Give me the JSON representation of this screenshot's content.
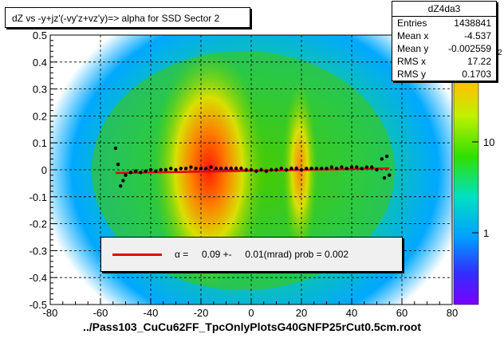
{
  "chart_data": {
    "type": "heatmap",
    "title": "dZ vs -y+jz'(-vy'z+vz'y)=> alpha for SSD Sector 2",
    "xlabel": "../Pass103_CuCu62FF_TpcOnlyPlotsG40GNFP25rCut0.5cm.root",
    "ylabel": "",
    "xlim": [
      -80,
      80
    ],
    "ylim": [
      -0.5,
      0.5
    ],
    "x_ticks": [
      -80,
      -60,
      -40,
      -20,
      0,
      20,
      40,
      60,
      80
    ],
    "y_ticks": [
      -0.5,
      -0.4,
      -0.3,
      -0.2,
      -0.1,
      0,
      0.1,
      0.2,
      0.3,
      0.4,
      0.5
    ],
    "x_tick_labels": [
      "-80",
      "-60",
      "-40",
      "-20",
      "0",
      "20",
      "40",
      "60",
      "80"
    ],
    "y_tick_labels": [
      "-0.5",
      "-0.4",
      "-0.3",
      "-0.2",
      "-0.1",
      "0",
      "0.1",
      "0.2",
      "0.3",
      "0.4",
      "0.5"
    ],
    "grid": true,
    "colorbar": {
      "scale": "log",
      "labels": [
        "1",
        "10"
      ],
      "exponent_label": "2"
    },
    "profile_points": [
      {
        "x": -54,
        "y": 0.08
      },
      {
        "x": -53,
        "y": 0.02
      },
      {
        "x": -52,
        "y": -0.06
      },
      {
        "x": -51,
        "y": -0.04
      },
      {
        "x": -50,
        "y": -0.02
      },
      {
        "x": -48,
        "y": -0.01
      },
      {
        "x": -46,
        "y": -0.005
      },
      {
        "x": -44,
        "y": -0.01
      },
      {
        "x": -42,
        "y": -0.005
      },
      {
        "x": -40,
        "y": 0.0
      },
      {
        "x": -38,
        "y": -0.005
      },
      {
        "x": -36,
        "y": 0.0
      },
      {
        "x": -34,
        "y": 0.0
      },
      {
        "x": -32,
        "y": 0.005
      },
      {
        "x": -30,
        "y": 0.0
      },
      {
        "x": -28,
        "y": 0.005
      },
      {
        "x": -26,
        "y": 0.005
      },
      {
        "x": -24,
        "y": 0.01
      },
      {
        "x": -22,
        "y": 0.005
      },
      {
        "x": -20,
        "y": 0.005
      },
      {
        "x": -18,
        "y": 0.005
      },
      {
        "x": -16,
        "y": 0.01
      },
      {
        "x": -14,
        "y": 0.005
      },
      {
        "x": -12,
        "y": 0.005
      },
      {
        "x": -10,
        "y": 0.005
      },
      {
        "x": -8,
        "y": 0.005
      },
      {
        "x": -6,
        "y": 0.005
      },
      {
        "x": -4,
        "y": 0.005
      },
      {
        "x": -2,
        "y": 0.0
      },
      {
        "x": 0,
        "y": 0.0
      },
      {
        "x": 2,
        "y": -0.005
      },
      {
        "x": 4,
        "y": 0.0
      },
      {
        "x": 6,
        "y": -0.005
      },
      {
        "x": 8,
        "y": 0.0
      },
      {
        "x": 10,
        "y": 0.0
      },
      {
        "x": 12,
        "y": 0.005
      },
      {
        "x": 14,
        "y": 0.0
      },
      {
        "x": 16,
        "y": 0.005
      },
      {
        "x": 18,
        "y": 0.005
      },
      {
        "x": 20,
        "y": 0.0
      },
      {
        "x": 22,
        "y": 0.005
      },
      {
        "x": 24,
        "y": 0.005
      },
      {
        "x": 26,
        "y": 0.005
      },
      {
        "x": 28,
        "y": 0.005
      },
      {
        "x": 30,
        "y": 0.005
      },
      {
        "x": 32,
        "y": 0.01
      },
      {
        "x": 34,
        "y": 0.005
      },
      {
        "x": 36,
        "y": 0.01
      },
      {
        "x": 38,
        "y": 0.005
      },
      {
        "x": 40,
        "y": 0.01
      },
      {
        "x": 42,
        "y": 0.01
      },
      {
        "x": 44,
        "y": 0.005
      },
      {
        "x": 46,
        "y": 0.01
      },
      {
        "x": 48,
        "y": 0.01
      },
      {
        "x": 50,
        "y": 0.0
      },
      {
        "x": 52,
        "y": 0.04
      },
      {
        "x": 53,
        "y": -0.03
      },
      {
        "x": 54,
        "y": 0.05
      },
      {
        "x": 55,
        "y": -0.02
      }
    ],
    "fit_line": {
      "x": [
        -54,
        55
      ],
      "y": [
        -0.012,
        0.005
      ]
    },
    "stats": {
      "name": "dZ4da3",
      "rows": [
        {
          "label": "Entries",
          "value": "1438841"
        },
        {
          "label": "Mean x",
          "value": "-4.537"
        },
        {
          "label": "Mean y",
          "value": "-0.002559"
        },
        {
          "label": "RMS x",
          "value": "17.22"
        },
        {
          "label": "RMS y",
          "value": "0.1703"
        }
      ]
    },
    "legend_text": "α =     0.09 +-     0.01(mrad) prob = 0.002"
  },
  "colors": {
    "fit": "#e8000b",
    "profile": "#000000",
    "profile_band": "#ff00ff",
    "frame_bg": "#ffffff"
  }
}
